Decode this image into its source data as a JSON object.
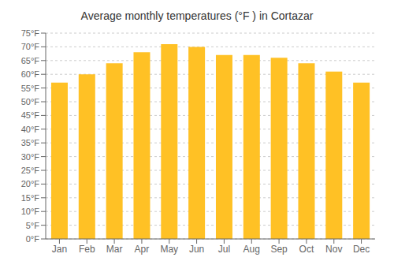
{
  "chart_data": {
    "type": "bar",
    "title": "Average monthly temperatures (°F ) in Cortazar",
    "categories": [
      "Jan",
      "Feb",
      "Mar",
      "Apr",
      "May",
      "Jun",
      "Jul",
      "Aug",
      "Sep",
      "Oct",
      "Nov",
      "Dec"
    ],
    "values": [
      57,
      60,
      64,
      68,
      71,
      70,
      67,
      67,
      66,
      64,
      61,
      57
    ],
    "color": "#FFC125",
    "ylim": [
      0,
      75
    ],
    "yticks": [
      {
        "value": 0,
        "label": "0°F"
      },
      {
        "value": 5,
        "label": "5°F"
      },
      {
        "value": 10,
        "label": "10°F"
      },
      {
        "value": 15,
        "label": "15°F"
      },
      {
        "value": 20,
        "label": "20°F"
      },
      {
        "value": 25,
        "label": "25°F"
      },
      {
        "value": 30,
        "label": "30°F"
      },
      {
        "value": 35,
        "label": "35°F"
      },
      {
        "value": 40,
        "label": "40°F"
      },
      {
        "value": 45,
        "label": "45°F"
      },
      {
        "value": 50,
        "label": "50°F"
      },
      {
        "value": 55,
        "label": "55°F"
      },
      {
        "value": 60,
        "label": "60°F"
      },
      {
        "value": 65,
        "label": "65°F"
      },
      {
        "value": 70,
        "label": "70°F"
      },
      {
        "value": 75,
        "label": "75°F"
      }
    ],
    "grid": true
  }
}
